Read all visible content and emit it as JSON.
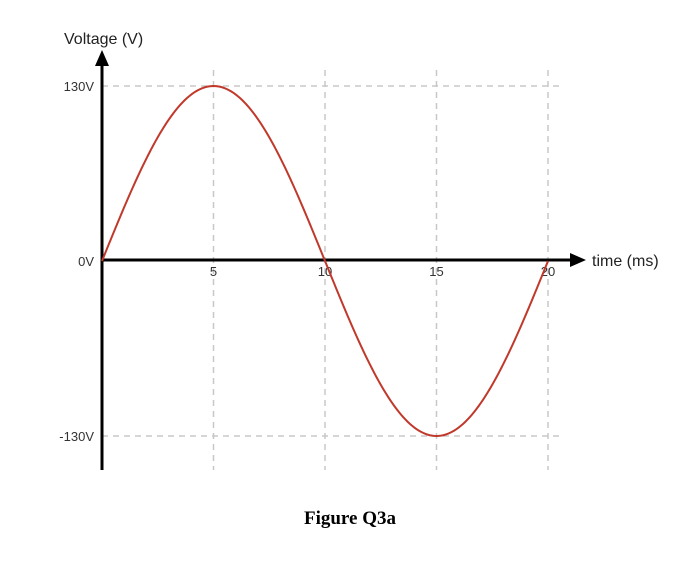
{
  "caption": "Figure Q3a",
  "chart_data": {
    "type": "line",
    "xlabel": "time (ms)",
    "ylabel": "Voltage (V)",
    "xlim": [
      0,
      20
    ],
    "ylim": [
      -130,
      130
    ],
    "x_ticks": [
      5,
      10,
      15,
      20
    ],
    "x_tick_labels": [
      "5",
      "10",
      "15",
      "20"
    ],
    "y_ticks": [
      130,
      0,
      -130
    ],
    "y_tick_labels": [
      "130V",
      "0V",
      "-130V"
    ],
    "grid": "dashed",
    "series": [
      {
        "color": "#c0392b",
        "x": [
          0,
          2.5,
          5,
          7.5,
          10,
          12.5,
          15,
          17.5,
          20
        ],
        "y": [
          0,
          91.9,
          130,
          91.9,
          0,
          -91.9,
          -130,
          -91.9,
          0
        ]
      }
    ]
  }
}
